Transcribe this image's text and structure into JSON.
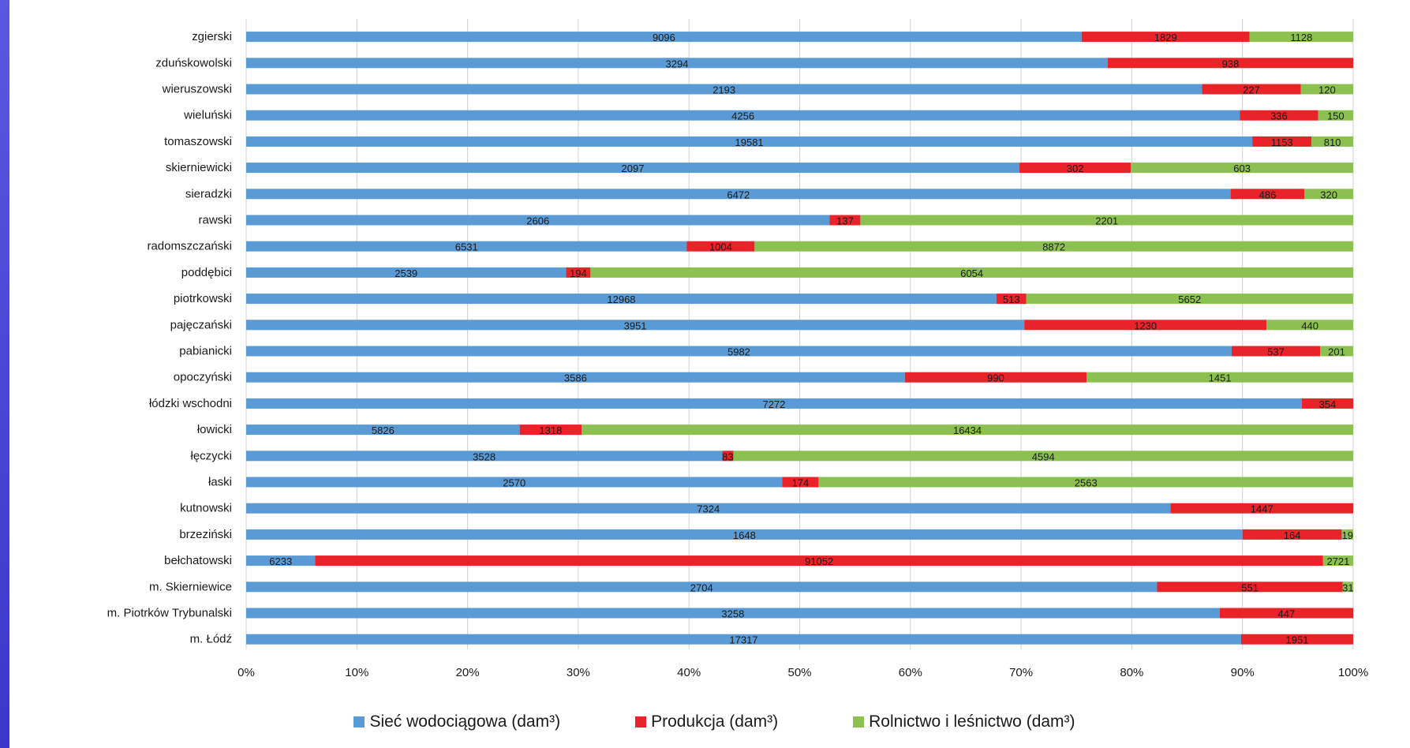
{
  "colors": {
    "siec": "#5b9bd5",
    "produkcja": "#e8232a",
    "rolnictwo": "#8cc152",
    "background": "#3b37c9"
  },
  "legend": [
    {
      "label": "Sieć wodociągowa (dam³)",
      "color": "#5b9bd5"
    },
    {
      "label": "Produkcja (dam³)",
      "color": "#e8232a"
    },
    {
      "label": "Rolnictwo i leśnictwo (dam³)",
      "color": "#8cc152"
    }
  ],
  "chart_data": {
    "type": "bar",
    "orientation": "horizontal",
    "stacked": "percent",
    "categories": [
      "zgierski",
      "zduńskowolski",
      "wieruszowski",
      "wieluński",
      "tomaszowski",
      "skierniewicki",
      "sieradzki",
      "rawski",
      "radomszczański",
      "poddębici",
      "piotrkowski",
      "pajęczański",
      "pabianicki",
      "opoczyński",
      "łódzki wschodni",
      "łowicki",
      "łęczycki",
      "łaski",
      "kutnowski",
      "brzeziński",
      "bełchatowski",
      "m. Skierniewice",
      "m. Piotrków Trybunalski",
      "m. Łódź"
    ],
    "series": [
      {
        "name": "Sieć wodociągowa (dam³)",
        "values": [
          9096,
          3294,
          2193,
          4256,
          19581,
          2097,
          6472,
          2606,
          6531,
          2539,
          12968,
          3951,
          5982,
          3586,
          7272,
          5826,
          3528,
          2570,
          7324,
          1648,
          6233,
          2704,
          3258,
          17317
        ]
      },
      {
        "name": "Produkcja (dam³)",
        "values": [
          1829,
          938,
          227,
          336,
          1153,
          302,
          486,
          137,
          1004,
          194,
          513,
          1230,
          537,
          990,
          354,
          1318,
          83,
          174,
          1447,
          164,
          91052,
          551,
          447,
          1951
        ]
      },
      {
        "name": "Rolnictwo i leśnictwo (dam³)",
        "values": [
          1128,
          null,
          120,
          150,
          810,
          603,
          320,
          2201,
          8872,
          6054,
          5652,
          440,
          201,
          1451,
          null,
          16434,
          4594,
          2563,
          null,
          19,
          2721,
          31,
          null,
          null
        ]
      }
    ],
    "x_ticks": [
      "0%",
      "10%",
      "20%",
      "30%",
      "40%",
      "50%",
      "60%",
      "70%",
      "80%",
      "90%",
      "100%"
    ],
    "xlim": [
      0,
      100
    ],
    "grid": "vertical",
    "legend_position": "bottom"
  }
}
